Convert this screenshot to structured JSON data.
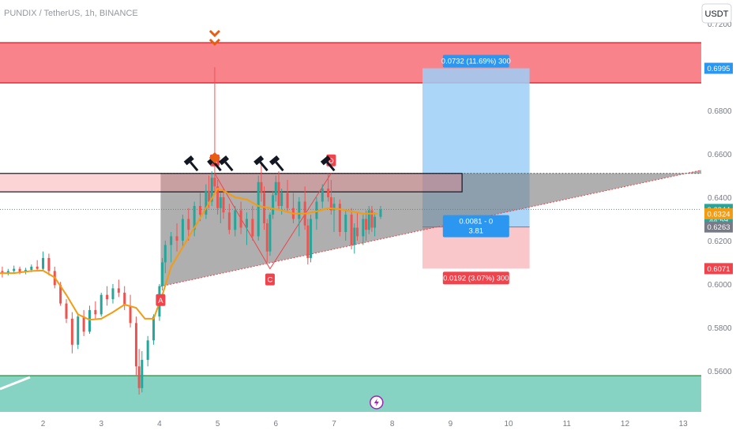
{
  "header": {
    "symbol_line": "PUNDIX / TetherUS, 1h, BINANCE",
    "currency_button": "USDT"
  },
  "colors": {
    "up": "#26a69a",
    "down": "#ef5350",
    "ema": "#f39c12",
    "resistance_zone": "#f8838a",
    "support_zone": "#86d3c3",
    "target_zone": "#9ccff7",
    "stop_zone": "#f8c0c4",
    "pattern_fill": "#7a7a7a",
    "marker": "#e85d12",
    "label_red": "#f0434c",
    "label_blue": "#2b97f0"
  },
  "chart_data": {
    "type": "candlestick",
    "title": "PUNDIX / TetherUS, 1h, BINANCE",
    "xlabel": "",
    "ylabel": "",
    "x_ticks": [
      "2",
      "3",
      "4",
      "5",
      "6",
      "7",
      "8",
      "9",
      "10",
      "11",
      "12",
      "13"
    ],
    "y_ticks": [
      "0.5600",
      "0.5800",
      "0.6000",
      "0.6200",
      "0.6400",
      "0.6600",
      "0.6800",
      "0.7000",
      "0.7200"
    ],
    "y_range": [
      0.541,
      0.731
    ],
    "x_range": [
      1.26,
      13.31
    ],
    "grid": false,
    "last_price": 0.6344,
    "countdown": "44:59",
    "price_labels": [
      {
        "value": 0.6995,
        "text": "0.6995",
        "color": "#2b97f0"
      },
      {
        "value": 0.6344,
        "text": "0.6344",
        "color": "#26a69a"
      },
      {
        "value": 0.6324,
        "text": "0.6324",
        "color": "#f39c12"
      },
      {
        "value": 0.6263,
        "text": "0.6263",
        "color": "#787b86"
      },
      {
        "value": 0.6071,
        "text": "0.6071",
        "color": "#f0434c"
      }
    ],
    "zones": [
      {
        "name": "resistance",
        "y_top": 0.7113,
        "y_bottom": 0.6928
      },
      {
        "name": "support",
        "y_top": 0.5577,
        "y_bottom": 0.541
      },
      {
        "name": "consolidation",
        "x_start": 1.26,
        "x_end": 9.2,
        "y_top": 0.651,
        "y_bottom": 0.6425
      }
    ],
    "position": {
      "x_start": 8.52,
      "x_end": 10.36,
      "target": 0.6995,
      "entry": 0.6263,
      "stop": 0.6071,
      "target_label": "0.0732 (11.69%) 300",
      "entry_label_1": "0.0081 - 0",
      "entry_label_2": "3.81",
      "stop_label": "0.0192 (3.07%) 300"
    },
    "pattern": {
      "triangle_top": [
        {
          "x": 4.02,
          "y": 0.651
        },
        {
          "x": 13.31,
          "y": 0.651
        }
      ],
      "triangle_bottom": [
        {
          "x": 4.02,
          "y": 0.5989
        },
        {
          "x": 13.31,
          "y": 0.6525
        }
      ],
      "points": [
        {
          "label": "A",
          "x": 4.02,
          "y": 0.5975
        },
        {
          "label": "B",
          "x": 4.95,
          "y": 0.651
        },
        {
          "label": "C",
          "x": 5.9,
          "y": 0.607
        },
        {
          "label": "D",
          "x": 6.95,
          "y": 0.651
        }
      ]
    },
    "hammer_x": [
      4.55,
      4.95,
      5.15,
      5.75,
      6.02,
      6.9
    ],
    "ema": [
      [
        1.26,
        0.605
      ],
      [
        1.5,
        0.605
      ],
      [
        1.8,
        0.606
      ],
      [
        2.0,
        0.6062
      ],
      [
        2.2,
        0.603
      ],
      [
        2.4,
        0.595
      ],
      [
        2.6,
        0.586
      ],
      [
        2.8,
        0.5835
      ],
      [
        3.0,
        0.584
      ],
      [
        3.2,
        0.587
      ],
      [
        3.4,
        0.5905
      ],
      [
        3.6,
        0.589
      ],
      [
        3.75,
        0.584
      ],
      [
        3.9,
        0.584
      ],
      [
        4.05,
        0.595
      ],
      [
        4.2,
        0.608
      ],
      [
        4.4,
        0.617
      ],
      [
        4.6,
        0.626
      ],
      [
        4.8,
        0.635
      ],
      [
        5.0,
        0.644
      ],
      [
        5.1,
        0.643
      ],
      [
        5.3,
        0.64
      ],
      [
        5.5,
        0.639
      ],
      [
        5.7,
        0.636
      ],
      [
        5.9,
        0.635
      ],
      [
        6.1,
        0.634
      ],
      [
        6.3,
        0.6325
      ],
      [
        6.5,
        0.6325
      ],
      [
        6.7,
        0.6335
      ],
      [
        6.9,
        0.635
      ],
      [
        7.1,
        0.6345
      ],
      [
        7.3,
        0.6335
      ],
      [
        7.5,
        0.6325
      ],
      [
        7.75,
        0.6324
      ]
    ],
    "candles": [
      [
        1.3,
        0.606,
        0.608,
        0.603,
        0.605
      ],
      [
        1.4,
        0.605,
        0.607,
        0.604,
        0.606
      ],
      [
        1.5,
        0.606,
        0.6085,
        0.605,
        0.607
      ],
      [
        1.6,
        0.607,
        0.608,
        0.6045,
        0.6055
      ],
      [
        1.7,
        0.6055,
        0.6075,
        0.6045,
        0.6065
      ],
      [
        1.8,
        0.6065,
        0.609,
        0.6055,
        0.608
      ],
      [
        1.9,
        0.608,
        0.611,
        0.606,
        0.607
      ],
      [
        2.0,
        0.607,
        0.615,
        0.606,
        0.612
      ],
      [
        2.1,
        0.612,
        0.614,
        0.604,
        0.606
      ],
      [
        2.2,
        0.606,
        0.608,
        0.598,
        0.5995
      ],
      [
        2.3,
        0.5995,
        0.601,
        0.59,
        0.591
      ],
      [
        2.4,
        0.591,
        0.593,
        0.582,
        0.584
      ],
      [
        2.5,
        0.584,
        0.587,
        0.568,
        0.572
      ],
      [
        2.6,
        0.572,
        0.586,
        0.57,
        0.585
      ],
      [
        2.7,
        0.585,
        0.588,
        0.576,
        0.578
      ],
      [
        2.8,
        0.578,
        0.59,
        0.577,
        0.588
      ],
      [
        2.9,
        0.588,
        0.592,
        0.584,
        0.586
      ],
      [
        3.0,
        0.586,
        0.596,
        0.585,
        0.595
      ],
      [
        3.1,
        0.595,
        0.599,
        0.59,
        0.593
      ],
      [
        3.2,
        0.593,
        0.6,
        0.591,
        0.598
      ],
      [
        3.3,
        0.598,
        0.602,
        0.594,
        0.596
      ],
      [
        3.4,
        0.596,
        0.599,
        0.588,
        0.59
      ],
      [
        3.5,
        0.59,
        0.595,
        0.58,
        0.582
      ],
      [
        3.6,
        0.582,
        0.585,
        0.558,
        0.562
      ],
      [
        3.65,
        0.562,
        0.57,
        0.549,
        0.552
      ],
      [
        3.7,
        0.552,
        0.569,
        0.55,
        0.565
      ],
      [
        3.8,
        0.565,
        0.576,
        0.562,
        0.574
      ],
      [
        3.9,
        0.574,
        0.586,
        0.572,
        0.585
      ],
      [
        4.0,
        0.585,
        0.6,
        0.583,
        0.599
      ],
      [
        4.05,
        0.599,
        0.612,
        0.597,
        0.61
      ],
      [
        4.1,
        0.61,
        0.62,
        0.605,
        0.618
      ],
      [
        4.2,
        0.618,
        0.624,
        0.61,
        0.622
      ],
      [
        4.3,
        0.622,
        0.628,
        0.615,
        0.62
      ],
      [
        4.4,
        0.62,
        0.632,
        0.617,
        0.63
      ],
      [
        4.5,
        0.63,
        0.635,
        0.62,
        0.625
      ],
      [
        4.6,
        0.625,
        0.638,
        0.622,
        0.636
      ],
      [
        4.7,
        0.636,
        0.642,
        0.629,
        0.632
      ],
      [
        4.8,
        0.632,
        0.646,
        0.63,
        0.643
      ],
      [
        4.85,
        0.643,
        0.65,
        0.635,
        0.638
      ],
      [
        4.9,
        0.638,
        0.652,
        0.636,
        0.649
      ],
      [
        4.95,
        0.649,
        0.7,
        0.642,
        0.645
      ],
      [
        5.0,
        0.645,
        0.648,
        0.632,
        0.635
      ],
      [
        5.05,
        0.635,
        0.642,
        0.628,
        0.64
      ],
      [
        5.1,
        0.64,
        0.644,
        0.63,
        0.633
      ],
      [
        5.2,
        0.633,
        0.637,
        0.623,
        0.625
      ],
      [
        5.3,
        0.625,
        0.636,
        0.622,
        0.634
      ],
      [
        5.4,
        0.634,
        0.638,
        0.623,
        0.626
      ],
      [
        5.5,
        0.626,
        0.633,
        0.618,
        0.63
      ],
      [
        5.6,
        0.63,
        0.636,
        0.62,
        0.622
      ],
      [
        5.7,
        0.622,
        0.65,
        0.62,
        0.647
      ],
      [
        5.75,
        0.647,
        0.655,
        0.638,
        0.642
      ],
      [
        5.8,
        0.642,
        0.645,
        0.625,
        0.628
      ],
      [
        5.85,
        0.628,
        0.63,
        0.61,
        0.615
      ],
      [
        5.9,
        0.615,
        0.633,
        0.613,
        0.632
      ],
      [
        5.95,
        0.632,
        0.643,
        0.63,
        0.641
      ],
      [
        6.0,
        0.641,
        0.65,
        0.638,
        0.647
      ],
      [
        6.05,
        0.647,
        0.652,
        0.634,
        0.636
      ],
      [
        6.1,
        0.636,
        0.644,
        0.632,
        0.642
      ],
      [
        6.2,
        0.642,
        0.648,
        0.633,
        0.635
      ],
      [
        6.3,
        0.635,
        0.642,
        0.628,
        0.63
      ],
      [
        6.4,
        0.63,
        0.64,
        0.622,
        0.638
      ],
      [
        6.5,
        0.638,
        0.645,
        0.625,
        0.627
      ],
      [
        6.55,
        0.627,
        0.63,
        0.609,
        0.612
      ],
      [
        6.6,
        0.612,
        0.632,
        0.61,
        0.63
      ],
      [
        6.7,
        0.63,
        0.64,
        0.625,
        0.638
      ],
      [
        6.8,
        0.638,
        0.646,
        0.635,
        0.644
      ],
      [
        6.9,
        0.644,
        0.651,
        0.638,
        0.64
      ],
      [
        6.95,
        0.64,
        0.648,
        0.632,
        0.634
      ],
      [
        7.0,
        0.634,
        0.64,
        0.624,
        0.637
      ],
      [
        7.1,
        0.637,
        0.639,
        0.622,
        0.624
      ],
      [
        7.2,
        0.624,
        0.634,
        0.62,
        0.632
      ],
      [
        7.3,
        0.632,
        0.635,
        0.616,
        0.618
      ],
      [
        7.35,
        0.618,
        0.628,
        0.614,
        0.626
      ],
      [
        7.4,
        0.626,
        0.633,
        0.62,
        0.622
      ],
      [
        7.5,
        0.622,
        0.632,
        0.618,
        0.63
      ],
      [
        7.55,
        0.63,
        0.634,
        0.62,
        0.625
      ],
      [
        7.6,
        0.625,
        0.636,
        0.623,
        0.634
      ],
      [
        7.65,
        0.634,
        0.636,
        0.624,
        0.626
      ],
      [
        7.7,
        0.626,
        0.633,
        0.622,
        0.631
      ],
      [
        7.8,
        0.631,
        0.636,
        0.63,
        0.6344
      ]
    ]
  }
}
